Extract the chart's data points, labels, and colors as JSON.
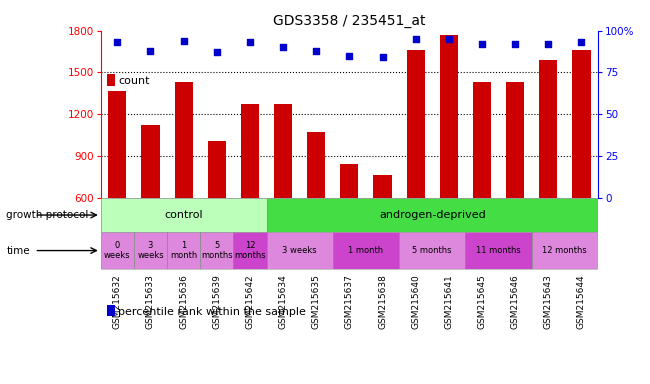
{
  "title": "GDS3358 / 235451_at",
  "samples": [
    "GSM215632",
    "GSM215633",
    "GSM215636",
    "GSM215639",
    "GSM215642",
    "GSM215634",
    "GSM215635",
    "GSM215637",
    "GSM215638",
    "GSM215640",
    "GSM215641",
    "GSM215645",
    "GSM215646",
    "GSM215643",
    "GSM215644"
  ],
  "counts": [
    1370,
    1120,
    1430,
    1010,
    1270,
    1270,
    1070,
    845,
    760,
    1660,
    1770,
    1430,
    1430,
    1590,
    1660
  ],
  "percentiles": [
    93,
    88,
    94,
    87,
    93,
    90,
    88,
    85,
    84,
    95,
    95,
    92,
    92,
    92,
    93
  ],
  "ymin": 600,
  "ymax": 1800,
  "yticks": [
    600,
    900,
    1200,
    1500,
    1800
  ],
  "pct_yticks": [
    0,
    25,
    50,
    75,
    100
  ],
  "bar_color": "#cc0000",
  "dot_color": "#0000cc",
  "protocol_control_color": "#bbffbb",
  "protocol_androgen_color": "#44dd44",
  "time_light_color": "#dd88dd",
  "time_dark_color": "#cc44cc",
  "sample_bg_color": "#d4d4d4",
  "protocol_groups": [
    {
      "label": "control",
      "start": 0,
      "end": 5
    },
    {
      "label": "androgen-deprived",
      "start": 5,
      "end": 15
    }
  ],
  "time_groups": [
    {
      "label": "0\nweeks",
      "start": 0,
      "end": 1,
      "dark": false
    },
    {
      "label": "3\nweeks",
      "start": 1,
      "end": 2,
      "dark": false
    },
    {
      "label": "1\nmonth",
      "start": 2,
      "end": 3,
      "dark": false
    },
    {
      "label": "5\nmonths",
      "start": 3,
      "end": 4,
      "dark": false
    },
    {
      "label": "12\nmonths",
      "start": 4,
      "end": 5,
      "dark": true
    },
    {
      "label": "3 weeks",
      "start": 5,
      "end": 7,
      "dark": false
    },
    {
      "label": "1 month",
      "start": 7,
      "end": 9,
      "dark": true
    },
    {
      "label": "5 months",
      "start": 9,
      "end": 11,
      "dark": false
    },
    {
      "label": "11 months",
      "start": 11,
      "end": 13,
      "dark": true
    },
    {
      "label": "12 months",
      "start": 13,
      "end": 15,
      "dark": false
    }
  ],
  "growth_protocol_label": "growth protocol",
  "time_label": "time",
  "legend_count_label": "count",
  "legend_pct_label": "percentile rank within the sample"
}
